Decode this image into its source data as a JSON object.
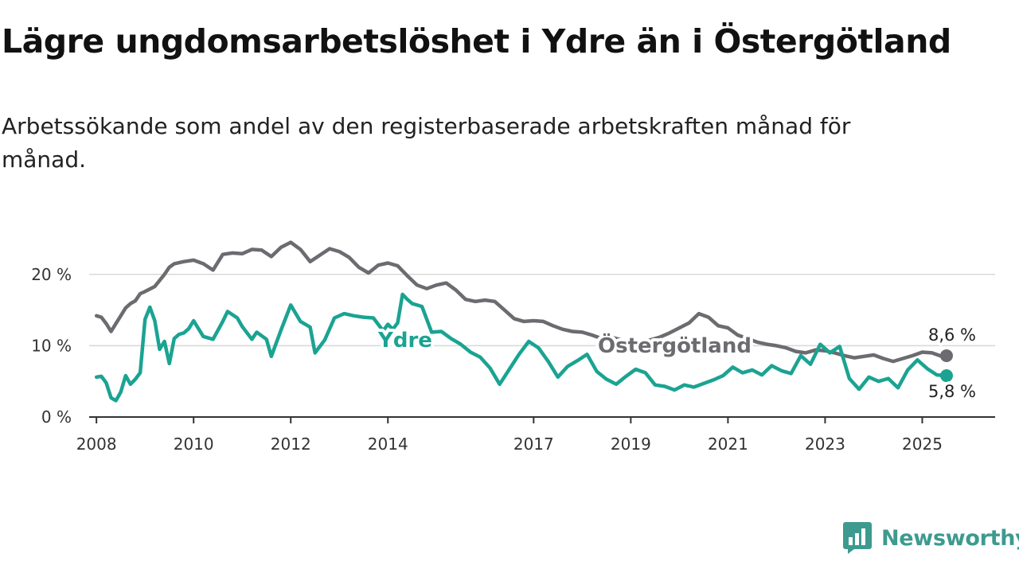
{
  "header": {
    "title": "Lägre ungdomsarbetslöshet i Ydre än i Östergötland",
    "subtitle": "Arbetssökande som andel av den registerbaserade arbetskraften månad för månad."
  },
  "brand": {
    "name": "Newsworthy",
    "icon": "newsworthy-logo-icon",
    "color": "#3d9a8f"
  },
  "chart_data": {
    "type": "line",
    "title": "Lägre ungdomsarbetslöshet i Ydre än i Östergötland",
    "subtitle": "Arbetssökande som andel av den registerbaserade arbetskraften månad för månad.",
    "xlabel": "",
    "ylabel": "",
    "xlim": [
      2007.85,
      2026.5
    ],
    "ylim": [
      0,
      25
    ],
    "grid": true,
    "y_ticks": [
      0,
      10,
      20
    ],
    "y_tick_labels": [
      "0 %",
      "10 %",
      "20 %"
    ],
    "x_ticks": [
      2008,
      2010,
      2012,
      2014,
      2017,
      2019,
      2021,
      2023,
      2025
    ],
    "x_tick_labels": [
      "2008",
      "2010",
      "2012",
      "2014",
      "2017",
      "2019",
      "2021",
      "2023",
      "2025"
    ],
    "series": [
      {
        "name": "Östergötland",
        "color": "#6b6b70",
        "end_label": "8,6 %",
        "x": [
          2008.0,
          2008.1,
          2008.2,
          2008.3,
          2008.4,
          2008.5,
          2008.6,
          2008.7,
          2008.8,
          2008.9,
          2009.0,
          2009.2,
          2009.4,
          2009.5,
          2009.6,
          2009.8,
          2010.0,
          2010.2,
          2010.4,
          2010.6,
          2010.8,
          2011.0,
          2011.2,
          2011.4,
          2011.6,
          2011.8,
          2012.0,
          2012.2,
          2012.4,
          2012.6,
          2012.8,
          2013.0,
          2013.2,
          2013.4,
          2013.6,
          2013.8,
          2014.0,
          2014.2,
          2014.4,
          2014.6,
          2014.8,
          2015.0,
          2015.2,
          2015.4,
          2015.6,
          2015.8,
          2016.0,
          2016.2,
          2016.4,
          2016.6,
          2016.8,
          2017.0,
          2017.2,
          2017.4,
          2017.6,
          2017.8,
          2018.0,
          2018.2,
          2018.4,
          2018.6,
          2018.8,
          2019.0,
          2019.2,
          2019.4,
          2019.6,
          2019.8,
          2020.0,
          2020.2,
          2020.4,
          2020.6,
          2020.8,
          2021.0,
          2021.2,
          2021.4,
          2021.6,
          2021.8,
          2022.0,
          2022.2,
          2022.4,
          2022.6,
          2022.8,
          2023.0,
          2023.2,
          2023.4,
          2023.6,
          2023.8,
          2024.0,
          2024.2,
          2024.4,
          2024.6,
          2024.8,
          2025.0,
          2025.2,
          2025.4,
          2025.5
        ],
        "values": [
          14.2,
          14.0,
          13.1,
          12.0,
          13.1,
          14.2,
          15.3,
          15.9,
          16.3,
          17.3,
          17.6,
          18.3,
          20.0,
          21.0,
          21.5,
          21.8,
          22.0,
          21.5,
          20.6,
          22.8,
          23.0,
          22.9,
          23.5,
          23.4,
          22.5,
          23.8,
          24.5,
          23.5,
          21.8,
          22.7,
          23.6,
          23.2,
          22.4,
          21.0,
          20.2,
          21.3,
          21.6,
          21.2,
          19.8,
          18.5,
          18.0,
          18.5,
          18.8,
          17.8,
          16.5,
          16.2,
          16.4,
          16.2,
          15.0,
          13.8,
          13.4,
          13.5,
          13.4,
          12.8,
          12.3,
          12.0,
          11.9,
          11.5,
          11.0,
          11.2,
          10.8,
          10.2,
          10.5,
          10.8,
          11.2,
          11.8,
          12.5,
          13.2,
          14.5,
          14.0,
          12.8,
          12.5,
          11.5,
          11.0,
          10.5,
          10.2,
          10.0,
          9.7,
          9.2,
          9.0,
          9.4,
          9.3,
          9.0,
          8.6,
          8.3,
          8.5,
          8.7,
          8.2,
          7.8,
          8.2,
          8.6,
          9.1,
          9.0,
          8.5,
          8.6
        ]
      },
      {
        "name": "Ydre",
        "color": "#1ba392",
        "end_label": "5,8 %",
        "x": [
          2008.0,
          2008.1,
          2008.2,
          2008.3,
          2008.4,
          2008.5,
          2008.6,
          2008.7,
          2008.8,
          2008.9,
          2009.0,
          2009.1,
          2009.2,
          2009.3,
          2009.4,
          2009.5,
          2009.6,
          2009.7,
          2009.8,
          2009.9,
          2010.0,
          2010.1,
          2010.2,
          2010.4,
          2010.6,
          2010.7,
          2010.9,
          2011.0,
          2011.2,
          2011.3,
          2011.5,
          2011.6,
          2011.8,
          2012.0,
          2012.2,
          2012.4,
          2012.5,
          2012.7,
          2012.9,
          2013.1,
          2013.3,
          2013.5,
          2013.7,
          2013.9,
          2014.0,
          2014.1,
          2014.2,
          2014.3,
          2014.4,
          2014.5,
          2014.7,
          2014.9,
          2015.1,
          2015.3,
          2015.5,
          2015.7,
          2015.9,
          2016.1,
          2016.3,
          2016.5,
          2016.7,
          2016.9,
          2017.1,
          2017.3,
          2017.5,
          2017.7,
          2017.9,
          2018.1,
          2018.3,
          2018.5,
          2018.7,
          2018.9,
          2019.1,
          2019.3,
          2019.5,
          2019.7,
          2019.9,
          2020.1,
          2020.3,
          2020.5,
          2020.7,
          2020.9,
          2021.1,
          2021.3,
          2021.5,
          2021.7,
          2021.9,
          2022.1,
          2022.3,
          2022.5,
          2022.7,
          2022.9,
          2023.1,
          2023.3,
          2023.5,
          2023.7,
          2023.9,
          2024.1,
          2024.3,
          2024.5,
          2024.7,
          2024.9,
          2025.1,
          2025.3,
          2025.5
        ],
        "values": [
          5.6,
          5.7,
          4.8,
          2.7,
          2.3,
          3.5,
          5.8,
          4.6,
          5.3,
          6.2,
          13.7,
          15.4,
          13.5,
          9.5,
          10.6,
          7.5,
          11.0,
          11.6,
          11.8,
          12.4,
          13.5,
          12.4,
          11.3,
          10.9,
          13.4,
          14.8,
          13.9,
          12.7,
          10.9,
          11.9,
          10.9,
          8.5,
          12.2,
          15.7,
          13.4,
          12.6,
          9.0,
          10.8,
          13.9,
          14.5,
          14.2,
          14.0,
          13.9,
          12.1,
          13.0,
          12.3,
          13.2,
          17.2,
          16.5,
          15.9,
          15.5,
          11.9,
          12.0,
          11.0,
          10.2,
          9.1,
          8.4,
          6.9,
          4.6,
          6.7,
          8.8,
          10.6,
          9.7,
          7.8,
          5.6,
          7.1,
          7.9,
          8.8,
          6.4,
          5.3,
          4.6,
          5.7,
          6.7,
          6.2,
          4.5,
          4.3,
          3.8,
          4.5,
          4.2,
          4.7,
          5.2,
          5.8,
          7.0,
          6.2,
          6.6,
          5.9,
          7.2,
          6.5,
          6.1,
          8.6,
          7.4,
          10.2,
          9.0,
          9.9,
          5.4,
          3.9,
          5.6,
          5.0,
          5.4,
          4.1,
          6.6,
          8.0,
          6.8,
          5.9,
          5.8
        ]
      }
    ]
  }
}
